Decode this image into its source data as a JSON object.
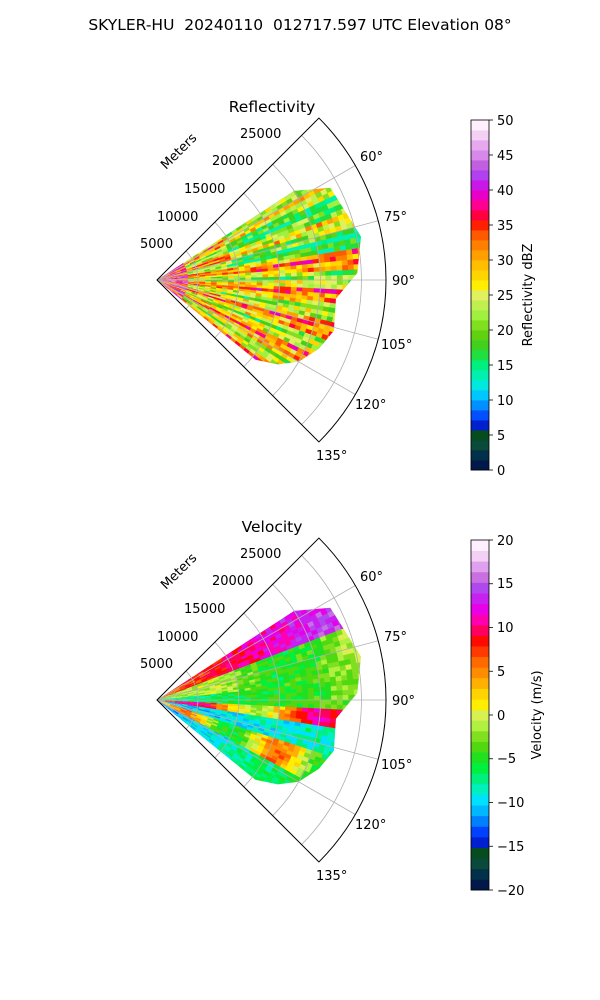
{
  "figure": {
    "title": "SKYLER-HU  20240110  012717.597 UTC Elevation 08°"
  },
  "chart_data": [
    {
      "type": "heatmap",
      "projection": "polar-sector",
      "title": "Reflectivity",
      "range_axis_label": "Meters",
      "range_ticks": [
        5000,
        10000,
        15000,
        20000,
        25000
      ],
      "range_tick_labels": [
        "5000",
        "10000",
        "15000",
        "20000",
        "25000"
      ],
      "range_limit": 28000,
      "azimuth_limits_deg": [
        45,
        135
      ],
      "azimuth_ticks_deg": [
        60,
        75,
        90,
        105,
        120,
        135
      ],
      "azimuth_tick_labels": [
        "60°",
        "75°",
        "90°",
        "105°",
        "120°",
        "135°"
      ],
      "grid": true,
      "approx_data_coverage": [
        {
          "az": 57,
          "range": 20000
        },
        {
          "az": 62,
          "range": 24000
        },
        {
          "az": 70,
          "range": 24500
        },
        {
          "az": 78,
          "range": 25500
        },
        {
          "az": 88,
          "range": 24500
        },
        {
          "az": 96,
          "range": 22000
        },
        {
          "az": 106,
          "range": 22500
        },
        {
          "az": 113,
          "range": 21500
        },
        {
          "az": 120,
          "range": 20000
        },
        {
          "az": 125,
          "range": 18000
        },
        {
          "az": 129,
          "range": 15500
        }
      ],
      "colorbar": {
        "label": "Reflectivity dBZ",
        "min": 0,
        "max": 50,
        "ticks": [
          0,
          5,
          10,
          15,
          20,
          25,
          30,
          35,
          40,
          45,
          50
        ],
        "tick_labels": [
          "0",
          "5",
          "10",
          "15",
          "20",
          "25",
          "30",
          "35",
          "40",
          "45",
          "50"
        ],
        "colors": [
          "#00184a",
          "#00304a",
          "#0a4a3a",
          "#064c1e",
          "#0020d0",
          "#0050ff",
          "#0090ff",
          "#00c8ff",
          "#00e8e0",
          "#00f0b0",
          "#00f080",
          "#20e040",
          "#40d020",
          "#60d010",
          "#80e020",
          "#a0f040",
          "#c0f050",
          "#e0f060",
          "#ffee00",
          "#ffd400",
          "#ffbe00",
          "#ffa000",
          "#ff8000",
          "#ff5a00",
          "#ff2000",
          "#ff0040",
          "#ff0090",
          "#e800c8",
          "#c818e8",
          "#b040f0",
          "#c060e0",
          "#d888e8",
          "#e8a8f0",
          "#f4d0f4",
          "#fff0ff"
        ]
      }
    },
    {
      "type": "heatmap",
      "projection": "polar-sector",
      "title": "Velocity",
      "range_axis_label": "Meters",
      "range_ticks": [
        5000,
        10000,
        15000,
        20000,
        25000
      ],
      "range_tick_labels": [
        "5000",
        "10000",
        "15000",
        "20000",
        "25000"
      ],
      "range_limit": 28000,
      "azimuth_limits_deg": [
        45,
        135
      ],
      "azimuth_ticks_deg": [
        60,
        75,
        90,
        105,
        120,
        135
      ],
      "azimuth_tick_labels": [
        "60°",
        "75°",
        "90°",
        "105°",
        "120°",
        "135°"
      ],
      "grid": true,
      "approx_data_coverage": [
        {
          "az": 57,
          "range": 20000
        },
        {
          "az": 62,
          "range": 24000
        },
        {
          "az": 70,
          "range": 24500
        },
        {
          "az": 78,
          "range": 25500
        },
        {
          "az": 88,
          "range": 24500
        },
        {
          "az": 96,
          "range": 22000
        },
        {
          "az": 106,
          "range": 22500
        },
        {
          "az": 113,
          "range": 21500
        },
        {
          "az": 120,
          "range": 20000
        },
        {
          "az": 125,
          "range": 18000
        },
        {
          "az": 129,
          "range": 15500
        }
      ],
      "colorbar": {
        "label": "Velocity (m/s)",
        "min": -20,
        "max": 20,
        "ticks": [
          -20,
          -15,
          -10,
          -5,
          0,
          5,
          10,
          15,
          20
        ],
        "tick_labels": [
          "−20",
          "−15",
          "−10",
          "−5",
          "0",
          "5",
          "10",
          "15",
          "20"
        ],
        "colors": [
          "#00184a",
          "#00304a",
          "#0a4a3a",
          "#064c1e",
          "#0020d0",
          "#0040ff",
          "#0080ff",
          "#00b8ff",
          "#00e0ff",
          "#00f0c0",
          "#00f080",
          "#00f040",
          "#20e020",
          "#50d810",
          "#80e020",
          "#b0f040",
          "#d8f050",
          "#ffee00",
          "#ffd400",
          "#ffb000",
          "#ff8c00",
          "#ff6a00",
          "#ff3a00",
          "#ff0a00",
          "#ff0060",
          "#ff00b0",
          "#e800e8",
          "#c820f0",
          "#b048f0",
          "#c870e0",
          "#e0a0f0",
          "#f4d0f4",
          "#fff0ff"
        ]
      }
    }
  ]
}
